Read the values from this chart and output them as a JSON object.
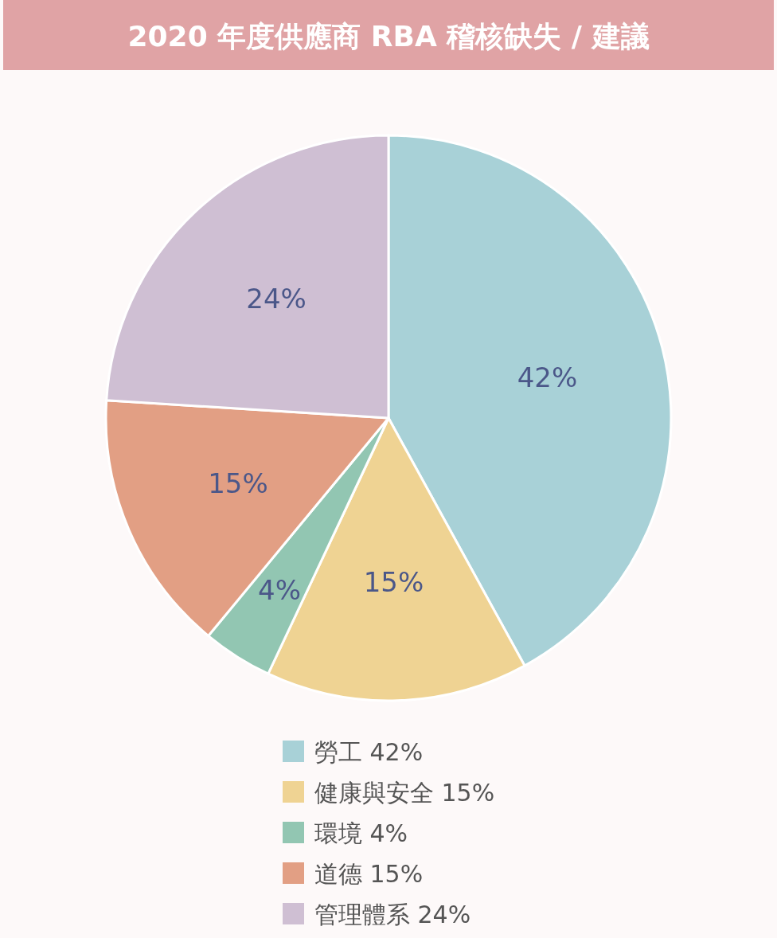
{
  "chart_data": {
    "type": "pie",
    "title": "2020 年度供應商 RBA 稽核缺失 / 建議",
    "categories": [
      "勞工",
      "健康與安全",
      "環境",
      "道德",
      "管理體系"
    ],
    "values": [
      42,
      15,
      4,
      15,
      24
    ],
    "value_labels": [
      "42%",
      "15%",
      "4%",
      "15%",
      "24%"
    ],
    "colors": [
      "#a8d1d7",
      "#efd393",
      "#92c6b2",
      "#e29f84",
      "#cfbfd3"
    ],
    "legend": "bottom"
  }
}
